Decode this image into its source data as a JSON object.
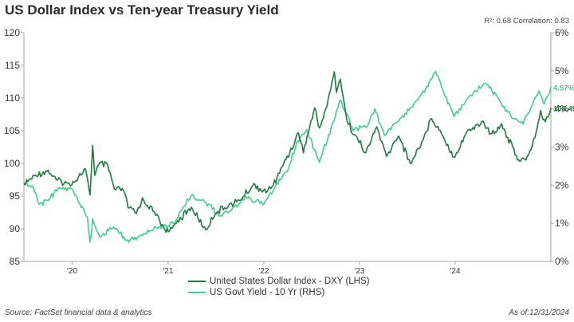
{
  "header": {
    "title": "US Dollar Index vs Ten-year Treasury Yield",
    "stats": "R²: 0.68 Correlation: 0.83"
  },
  "footer": {
    "source": "Source: FactSet financial data & analytics",
    "as_of": "As of:12/31/2024"
  },
  "colors": {
    "dxy": "#1e7a3f",
    "yield": "#3ecf8e",
    "axis": "#a6a6a6",
    "text": "#333333"
  },
  "chart_data": {
    "type": "line",
    "x_range": [
      "2019-07-01",
      "2024-12-31"
    ],
    "x_ticks": [
      {
        "label": "'20",
        "date": "2020-01-01"
      },
      {
        "label": "'21",
        "date": "2021-01-01"
      },
      {
        "label": "'22",
        "date": "2022-01-01"
      },
      {
        "label": "'23",
        "date": "2023-01-01"
      },
      {
        "label": "'24",
        "date": "2024-01-01"
      }
    ],
    "y_left": {
      "range": [
        85,
        120
      ],
      "ticks": [
        "85",
        "90",
        "95",
        "100",
        "105",
        "110",
        "115",
        "120"
      ]
    },
    "y_right": {
      "range": [
        0,
        6
      ],
      "ticks": [
        "0%",
        "1%",
        "2%",
        "3%",
        "4%",
        "5%",
        "6%"
      ]
    },
    "grid": false,
    "legend_position": "bottom",
    "series": [
      {
        "name": "United States Dollar Index - DXY (LHS)",
        "axis": "left",
        "end_label": "108.49",
        "points": [
          [
            "2019-07-01",
            96.8
          ],
          [
            "2019-08-15",
            98.2
          ],
          [
            "2019-10-01",
            98.9
          ],
          [
            "2019-11-01",
            97.5
          ],
          [
            "2019-12-15",
            96.9
          ],
          [
            "2020-01-15",
            97.4
          ],
          [
            "2020-02-20",
            99.2
          ],
          [
            "2020-03-09",
            95.0
          ],
          [
            "2020-03-19",
            102.8
          ],
          [
            "2020-03-27",
            98.3
          ],
          [
            "2020-04-15",
            100.0
          ],
          [
            "2020-05-15",
            99.7
          ],
          [
            "2020-06-10",
            96.0
          ],
          [
            "2020-07-15",
            95.9
          ],
          [
            "2020-08-01",
            93.3
          ],
          [
            "2020-09-01",
            92.3
          ],
          [
            "2020-09-25",
            94.6
          ],
          [
            "2020-10-15",
            93.6
          ],
          [
            "2020-11-15",
            92.2
          ],
          [
            "2020-12-15",
            90.2
          ],
          [
            "2021-01-06",
            89.5
          ],
          [
            "2021-02-01",
            91.0
          ],
          [
            "2021-03-31",
            93.2
          ],
          [
            "2021-05-25",
            89.8
          ],
          [
            "2021-06-30",
            92.4
          ],
          [
            "2021-08-20",
            93.6
          ],
          [
            "2021-09-30",
            94.3
          ],
          [
            "2021-11-24",
            96.8
          ],
          [
            "2021-12-31",
            95.7
          ],
          [
            "2022-02-01",
            96.3
          ],
          [
            "2022-03-07",
            99.1
          ],
          [
            "2022-04-29",
            103.2
          ],
          [
            "2022-05-13",
            104.8
          ],
          [
            "2022-06-01",
            101.8
          ],
          [
            "2022-07-14",
            108.5
          ],
          [
            "2022-08-01",
            105.4
          ],
          [
            "2022-08-30",
            108.8
          ],
          [
            "2022-09-27",
            114.1
          ],
          [
            "2022-10-05",
            110.7
          ],
          [
            "2022-10-20",
            113.0
          ],
          [
            "2022-11-15",
            106.4
          ],
          [
            "2022-12-15",
            104.3
          ],
          [
            "2023-01-25",
            101.6
          ],
          [
            "2023-03-08",
            105.6
          ],
          [
            "2023-04-14",
            101.0
          ],
          [
            "2023-05-31",
            104.3
          ],
          [
            "2023-07-14",
            99.9
          ],
          [
            "2023-08-31",
            103.6
          ],
          [
            "2023-10-03",
            107.0
          ],
          [
            "2023-11-15",
            104.3
          ],
          [
            "2023-12-27",
            100.9
          ],
          [
            "2024-02-14",
            104.8
          ],
          [
            "2024-04-16",
            106.4
          ],
          [
            "2024-05-15",
            104.4
          ],
          [
            "2024-06-26",
            106.0
          ],
          [
            "2024-08-26",
            100.7
          ],
          [
            "2024-09-27",
            100.4
          ],
          [
            "2024-10-31",
            104.0
          ],
          [
            "2024-11-22",
            107.9
          ],
          [
            "2024-12-10",
            106.3
          ],
          [
            "2024-12-31",
            108.49
          ]
        ]
      },
      {
        "name": "US Govt Yield - 10 Yr (RHS)",
        "axis": "right",
        "end_label": "4.57%",
        "points": [
          [
            "2019-07-01",
            2.0
          ],
          [
            "2019-08-01",
            2.0
          ],
          [
            "2019-08-28",
            1.5
          ],
          [
            "2019-10-01",
            1.6
          ],
          [
            "2019-11-08",
            1.9
          ],
          [
            "2019-12-31",
            1.9
          ],
          [
            "2020-01-31",
            1.5
          ],
          [
            "2020-02-28",
            1.15
          ],
          [
            "2020-03-09",
            0.5
          ],
          [
            "2020-03-19",
            1.1
          ],
          [
            "2020-04-15",
            0.65
          ],
          [
            "2020-06-08",
            0.9
          ],
          [
            "2020-08-04",
            0.52
          ],
          [
            "2020-09-15",
            0.68
          ],
          [
            "2020-10-20",
            0.8
          ],
          [
            "2020-11-15",
            0.9
          ],
          [
            "2020-12-31",
            0.93
          ],
          [
            "2021-01-31",
            1.08
          ],
          [
            "2021-02-28",
            1.45
          ],
          [
            "2021-03-31",
            1.74
          ],
          [
            "2021-05-15",
            1.6
          ],
          [
            "2021-07-19",
            1.18
          ],
          [
            "2021-09-30",
            1.52
          ],
          [
            "2021-10-21",
            1.68
          ],
          [
            "2021-12-31",
            1.51
          ],
          [
            "2022-02-15",
            2.0
          ],
          [
            "2022-03-31",
            2.35
          ],
          [
            "2022-05-06",
            3.1
          ],
          [
            "2022-06-14",
            3.45
          ],
          [
            "2022-08-01",
            2.6
          ],
          [
            "2022-09-30",
            3.8
          ],
          [
            "2022-10-21",
            4.23
          ],
          [
            "2022-11-15",
            3.85
          ],
          [
            "2022-12-07",
            3.45
          ],
          [
            "2023-01-31",
            3.55
          ],
          [
            "2023-03-01",
            4.0
          ],
          [
            "2023-04-06",
            3.3
          ],
          [
            "2023-05-31",
            3.7
          ],
          [
            "2023-08-21",
            4.32
          ],
          [
            "2023-10-19",
            4.99
          ],
          [
            "2023-11-15",
            4.5
          ],
          [
            "2023-12-27",
            3.79
          ],
          [
            "2024-02-15",
            4.25
          ],
          [
            "2024-04-25",
            4.7
          ],
          [
            "2024-06-15",
            4.25
          ],
          [
            "2024-08-05",
            3.78
          ],
          [
            "2024-09-16",
            3.62
          ],
          [
            "2024-10-31",
            4.28
          ],
          [
            "2024-11-15",
            4.45
          ],
          [
            "2024-12-06",
            4.15
          ],
          [
            "2024-12-31",
            4.57
          ]
        ]
      }
    ]
  }
}
